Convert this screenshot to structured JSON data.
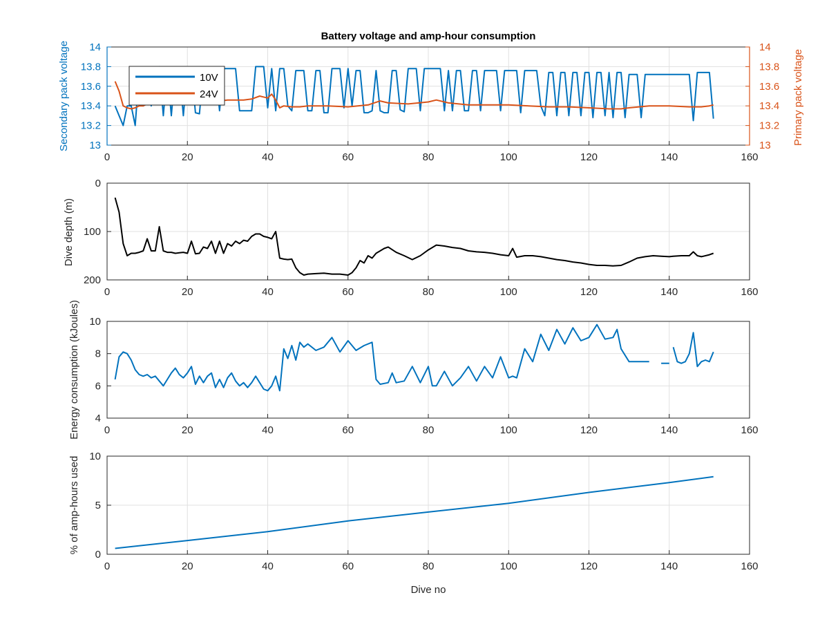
{
  "colors": {
    "blue": "#0072bd",
    "orange": "#d95319",
    "black": "#000000",
    "grid": "#e0e0e0",
    "axis": "#262626"
  },
  "chart_data": [
    {
      "type": "line",
      "title": "Battery voltage and amp-hour consumption",
      "xlabel": "",
      "ylabel": "Secondary pack voltage",
      "ylabel_right": "Primary pack voltage",
      "xlim": [
        0,
        160
      ],
      "ylim": [
        13,
        14
      ],
      "ylim_right": [
        13,
        14
      ],
      "x_ticks": [
        "0",
        "20",
        "40",
        "60",
        "80",
        "100",
        "120",
        "140",
        "160"
      ],
      "y_ticks": [
        "13",
        "13.2",
        "13.4",
        "13.6",
        "13.8",
        "14"
      ],
      "y_ticks_right": [
        "13",
        "13.2",
        "13.4",
        "13.6",
        "13.8",
        "14"
      ],
      "grid": true,
      "legend": "top-left",
      "series": [
        {
          "name": "10V",
          "axis": "left",
          "color": "#0072bd",
          "x": [
            2,
            3,
            4,
            5,
            6,
            7,
            8,
            9,
            10,
            11,
            12,
            13,
            14,
            15,
            16,
            17,
            18,
            19,
            20,
            21,
            22,
            23,
            24,
            25,
            26,
            27,
            28,
            29,
            30,
            31,
            32,
            33,
            34,
            35,
            36,
            37,
            38,
            39,
            40,
            41,
            42,
            43,
            44,
            45,
            46,
            47,
            48,
            49,
            50,
            51,
            52,
            53,
            54,
            55,
            56,
            57,
            58,
            59,
            60,
            61,
            62,
            63,
            64,
            65,
            66,
            67,
            68,
            69,
            70,
            71,
            72,
            73,
            74,
            75,
            76,
            77,
            78,
            79,
            80,
            81,
            82,
            83,
            84,
            85,
            86,
            87,
            88,
            89,
            90,
            91,
            92,
            93,
            94,
            95,
            96,
            97,
            98,
            99,
            100,
            101,
            102,
            103,
            104,
            105,
            106,
            107,
            108,
            109,
            110,
            111,
            112,
            113,
            114,
            115,
            116,
            117,
            118,
            119,
            120,
            121,
            122,
            123,
            124,
            125,
            126,
            127,
            128,
            129,
            130,
            131,
            132,
            133,
            134,
            135,
            136,
            137,
            138,
            139,
            140,
            141,
            142,
            143,
            144,
            145,
            146,
            147,
            148,
            149,
            150,
            151
          ],
          "values": [
            13.4,
            13.3,
            13.2,
            13.4,
            13.4,
            13.2,
            13.75,
            13.4,
            13.75,
            13.4,
            13.78,
            13.8,
            13.3,
            13.78,
            13.3,
            13.78,
            13.78,
            13.3,
            13.78,
            13.78,
            13.33,
            13.32,
            13.78,
            13.78,
            13.78,
            13.78,
            13.35,
            13.78,
            13.78,
            13.78,
            13.78,
            13.35,
            13.35,
            13.35,
            13.35,
            13.8,
            13.8,
            13.8,
            13.38,
            13.78,
            13.35,
            13.78,
            13.78,
            13.4,
            13.35,
            13.76,
            13.76,
            13.76,
            13.35,
            13.35,
            13.76,
            13.76,
            13.33,
            13.33,
            13.78,
            13.78,
            13.78,
            13.38,
            13.78,
            13.4,
            13.76,
            13.76,
            13.33,
            13.33,
            13.35,
            13.76,
            13.35,
            13.33,
            13.33,
            13.76,
            13.76,
            13.36,
            13.34,
            13.78,
            13.78,
            13.78,
            13.35,
            13.78,
            13.78,
            13.78,
            13.78,
            13.78,
            13.35,
            13.76,
            13.35,
            13.76,
            13.76,
            13.35,
            13.35,
            13.76,
            13.76,
            13.35,
            13.76,
            13.76,
            13.76,
            13.76,
            13.35,
            13.76,
            13.76,
            13.76,
            13.76,
            13.33,
            13.76,
            13.76,
            13.76,
            13.76,
            13.4,
            13.3,
            13.74,
            13.74,
            13.3,
            13.74,
            13.74,
            13.3,
            13.74,
            13.74,
            13.3,
            13.74,
            13.74,
            13.28,
            13.74,
            13.74,
            13.3,
            13.74,
            13.28,
            13.74,
            13.74,
            13.28,
            13.72,
            13.72,
            13.72,
            13.28,
            13.72,
            13.72,
            13.72,
            13.72,
            13.72,
            13.72,
            13.72,
            13.72,
            13.72,
            13.72,
            13.72,
            13.72,
            13.25,
            13.74,
            13.74,
            13.74,
            13.74,
            13.27
          ]
        },
        {
          "name": "24V",
          "axis": "right",
          "color": "#d95319",
          "x": [
            2,
            3,
            4,
            5,
            6,
            7,
            8,
            9,
            10,
            12,
            14,
            16,
            18,
            20,
            22,
            24,
            26,
            28,
            30,
            32,
            34,
            36,
            38,
            40,
            41,
            42,
            43,
            44,
            46,
            48,
            50,
            55,
            60,
            65,
            68,
            70,
            75,
            80,
            82,
            85,
            90,
            95,
            100,
            105,
            110,
            115,
            120,
            125,
            128,
            130,
            135,
            140,
            145,
            148,
            150,
            151
          ],
          "values": [
            13.65,
            13.55,
            13.4,
            13.38,
            13.37,
            13.38,
            13.4,
            13.4,
            13.42,
            13.43,
            13.43,
            13.44,
            13.43,
            13.45,
            13.44,
            13.45,
            13.44,
            13.45,
            13.46,
            13.46,
            13.46,
            13.47,
            13.5,
            13.48,
            13.52,
            13.46,
            13.38,
            13.4,
            13.39,
            13.39,
            13.4,
            13.4,
            13.39,
            13.41,
            13.45,
            13.43,
            13.42,
            13.44,
            13.46,
            13.43,
            13.41,
            13.41,
            13.41,
            13.4,
            13.39,
            13.39,
            13.38,
            13.37,
            13.37,
            13.38,
            13.4,
            13.4,
            13.39,
            13.39,
            13.4,
            13.41
          ]
        }
      ]
    },
    {
      "type": "line",
      "title": "",
      "xlabel": "",
      "ylabel": "Dive depth (m)",
      "xlim": [
        0,
        160
      ],
      "ylim": [
        0,
        200
      ],
      "y_reversed": true,
      "x_ticks": [
        "0",
        "20",
        "40",
        "60",
        "80",
        "100",
        "120",
        "140",
        "160"
      ],
      "y_ticks": [
        "0",
        "100",
        "200"
      ],
      "grid": true,
      "series": [
        {
          "color": "#000000",
          "x": [
            2,
            3,
            4,
            5,
            6,
            7,
            8,
            9,
            10,
            11,
            12,
            13,
            14,
            15,
            16,
            17,
            18,
            19,
            20,
            21,
            22,
            23,
            24,
            25,
            26,
            27,
            28,
            29,
            30,
            31,
            32,
            33,
            34,
            35,
            36,
            37,
            38,
            39,
            40,
            41,
            42,
            43,
            44,
            45,
            46,
            47,
            48,
            49,
            50,
            52,
            54,
            56,
            58,
            60,
            61,
            62,
            63,
            64,
            65,
            66,
            67,
            68,
            69,
            70,
            72,
            74,
            76,
            78,
            80,
            82,
            84,
            86,
            88,
            90,
            92,
            94,
            96,
            98,
            100,
            101,
            102,
            104,
            106,
            108,
            110,
            112,
            114,
            116,
            118,
            120,
            122,
            124,
            126,
            128,
            130,
            132,
            134,
            136,
            138,
            140,
            141,
            143,
            145,
            146,
            147,
            148,
            150,
            151
          ],
          "values": [
            30,
            60,
            125,
            150,
            145,
            145,
            143,
            140,
            115,
            140,
            140,
            90,
            140,
            143,
            143,
            145,
            144,
            143,
            145,
            120,
            146,
            145,
            132,
            135,
            120,
            145,
            120,
            145,
            125,
            130,
            120,
            125,
            118,
            120,
            110,
            105,
            105,
            110,
            112,
            115,
            100,
            155,
            157,
            158,
            157,
            175,
            185,
            190,
            188,
            187,
            186,
            188,
            188,
            190,
            185,
            175,
            160,
            165,
            150,
            155,
            145,
            140,
            135,
            132,
            143,
            150,
            158,
            150,
            138,
            128,
            130,
            133,
            135,
            140,
            142,
            143,
            145,
            148,
            150,
            135,
            153,
            150,
            150,
            152,
            155,
            158,
            160,
            163,
            165,
            168,
            170,
            170,
            171,
            170,
            163,
            155,
            152,
            150,
            151,
            152,
            151,
            150,
            150,
            142,
            150,
            152,
            148,
            145
          ]
        }
      ]
    },
    {
      "type": "line",
      "title": "",
      "xlabel": "",
      "ylabel": "Energy consumption (kJoules)",
      "xlim": [
        0,
        160
      ],
      "ylim": [
        4,
        10
      ],
      "x_ticks": [
        "0",
        "20",
        "40",
        "60",
        "80",
        "100",
        "120",
        "140",
        "160"
      ],
      "y_ticks": [
        "4",
        "6",
        "8",
        "10"
      ],
      "grid": true,
      "series": [
        {
          "color": "#0072bd",
          "x": [
            2,
            3,
            4,
            5,
            6,
            7,
            8,
            9,
            10,
            11,
            12,
            13,
            14,
            15,
            16,
            17,
            18,
            19,
            20,
            21,
            22,
            23,
            24,
            25,
            26,
            27,
            28,
            29,
            30,
            31,
            32,
            33,
            34,
            35,
            36,
            37,
            38,
            39,
            40,
            41,
            42,
            43,
            44,
            45,
            46,
            47,
            48,
            49,
            50,
            52,
            54,
            56,
            58,
            60,
            62,
            64,
            66,
            67,
            68,
            70,
            71,
            72,
            74,
            76,
            78,
            80,
            81,
            82,
            84,
            86,
            88,
            90,
            92,
            94,
            96,
            98,
            100,
            101,
            102,
            104,
            106,
            108,
            110,
            112,
            114,
            116,
            118,
            120,
            122,
            124,
            126,
            127,
            128,
            130,
            132,
            134,
            135
          ],
          "values": [
            6.4,
            7.8,
            8.1,
            8.0,
            7.6,
            7.0,
            6.7,
            6.6,
            6.7,
            6.5,
            6.6,
            6.3,
            6.0,
            6.4,
            6.8,
            7.1,
            6.7,
            6.5,
            6.8,
            7.2,
            6.1,
            6.6,
            6.2,
            6.6,
            6.8,
            5.9,
            6.4,
            5.9,
            6.5,
            6.8,
            6.3,
            6.0,
            6.2,
            5.9,
            6.2,
            6.6,
            6.2,
            5.8,
            5.7,
            6.0,
            6.6,
            5.7,
            8.3,
            7.7,
            8.5,
            7.6,
            8.7,
            8.4,
            8.6,
            8.2,
            8.4,
            9.0,
            8.1,
            8.8,
            8.2,
            8.5,
            8.7,
            6.4,
            6.1,
            6.2,
            6.8,
            6.2,
            6.3,
            7.2,
            6.2,
            7.2,
            6.0,
            6.0,
            6.9,
            6.0,
            6.5,
            7.2,
            6.3,
            7.2,
            6.5,
            7.8,
            6.5,
            6.6,
            6.5,
            8.3,
            7.5,
            9.2,
            8.2,
            9.5,
            8.6,
            9.6,
            8.8,
            9.0,
            9.8,
            8.9,
            9.0,
            9.5,
            8.3,
            7.5,
            7.5,
            7.5,
            7.5
          ]
        },
        {
          "color": "#0072bd",
          "x": [
            138,
            140
          ],
          "values": [
            7.4,
            7.4
          ]
        },
        {
          "color": "#0072bd",
          "x": [
            141,
            142,
            143,
            144,
            145,
            146,
            147,
            148,
            149,
            150,
            151
          ],
          "values": [
            8.4,
            7.5,
            7.4,
            7.5,
            8.0,
            9.3,
            7.2,
            7.5,
            7.6,
            7.5,
            8.1
          ]
        }
      ]
    },
    {
      "type": "line",
      "title": "",
      "xlabel": "Dive no",
      "ylabel": "% of amp-hours used",
      "xlim": [
        0,
        160
      ],
      "ylim": [
        0,
        10
      ],
      "x_ticks": [
        "0",
        "20",
        "40",
        "60",
        "80",
        "100",
        "120",
        "140",
        "160"
      ],
      "y_ticks": [
        "0",
        "5",
        "10"
      ],
      "grid": true,
      "series": [
        {
          "color": "#0072bd",
          "x": [
            2,
            20,
            40,
            60,
            80,
            100,
            120,
            140,
            151
          ],
          "values": [
            0.6,
            1.4,
            2.3,
            3.4,
            4.3,
            5.2,
            6.3,
            7.3,
            7.9
          ]
        }
      ]
    }
  ]
}
